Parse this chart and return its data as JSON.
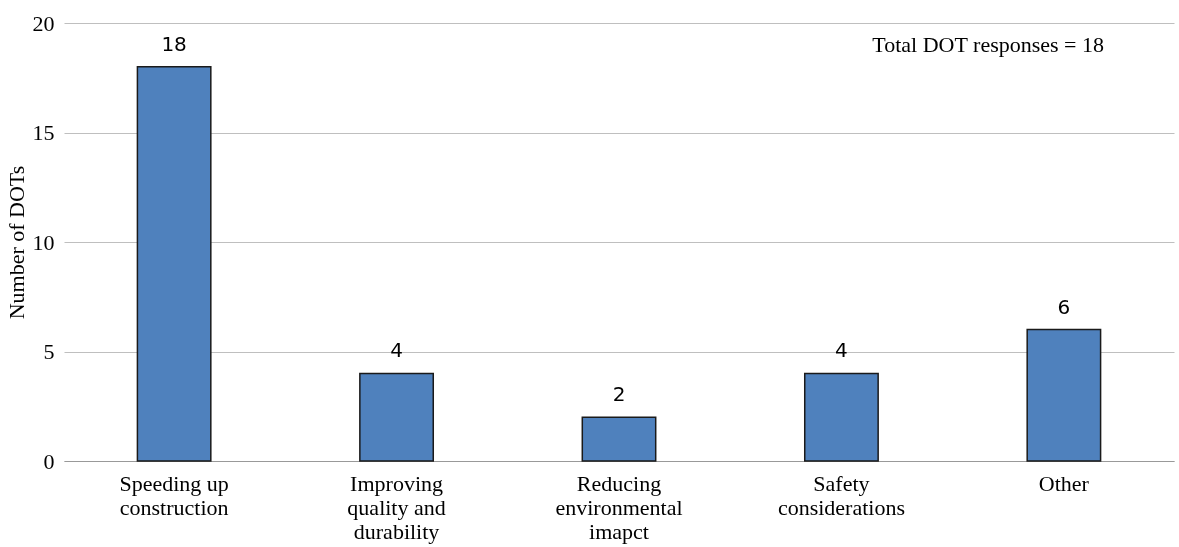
{
  "chart_data": {
    "type": "bar",
    "ylabel": "Number of DOTs",
    "categories": [
      "Speeding up\nconstruction",
      "Improving\nquality and\ndurability",
      "Reducing\nenvironmental\nimapct",
      "Safety\nconsiderations",
      "Other"
    ],
    "values": [
      18,
      4,
      2,
      4,
      6
    ],
    "color": "#4f81bd",
    "ylim": [
      0,
      20
    ],
    "yticks": [
      0,
      5,
      10,
      15,
      20
    ],
    "grid": "y",
    "data_labels": true,
    "annotations": [
      "Total DOT responses = 18"
    ]
  }
}
